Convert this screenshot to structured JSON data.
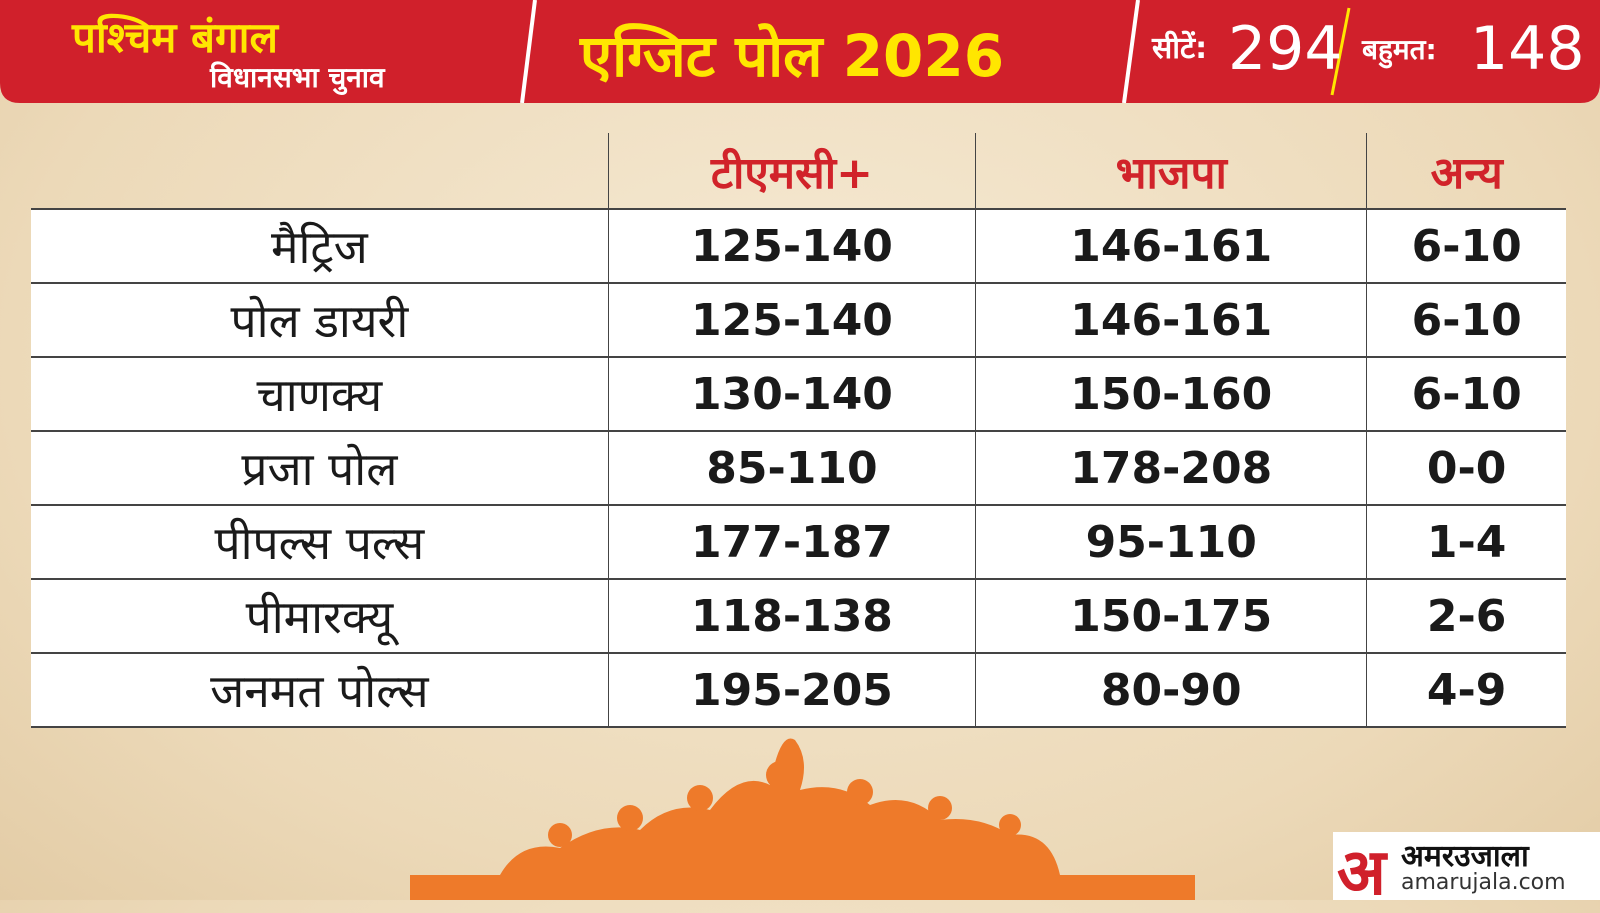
{
  "header": {
    "state": "पश्चिम बंगाल",
    "subtitle": "विधानसभा चुनाव",
    "title": "एग्जिट पोल 2026",
    "seats_label": "सीटें:",
    "seats": "294",
    "majority_label": "बहुमत:",
    "majority": "148"
  },
  "table": {
    "columns": [
      "टीएमसी+",
      "भाजपा",
      "अन्य"
    ],
    "rows": [
      [
        "मैट्रिज",
        "125-140",
        "146-161",
        "6-10"
      ],
      [
        "पोल डायरी",
        "125-140",
        "146-161",
        "6-10"
      ],
      [
        "चाणक्य",
        "130-140",
        "150-160",
        "6-10"
      ],
      [
        "प्रजा पोल",
        "85-110",
        "178-208",
        "0-0"
      ],
      [
        "पीपल्स पल्स",
        "177-187",
        "95-110",
        "1-4"
      ],
      [
        "पीमारक्यू",
        "118-138",
        "150-175",
        "2-6"
      ],
      [
        "जनमत पोल्स",
        "195-205",
        "80-90",
        "4-9"
      ]
    ]
  },
  "brand": {
    "logo": "अ",
    "name": "अमरउजाला",
    "site": "amarujala.com"
  }
}
